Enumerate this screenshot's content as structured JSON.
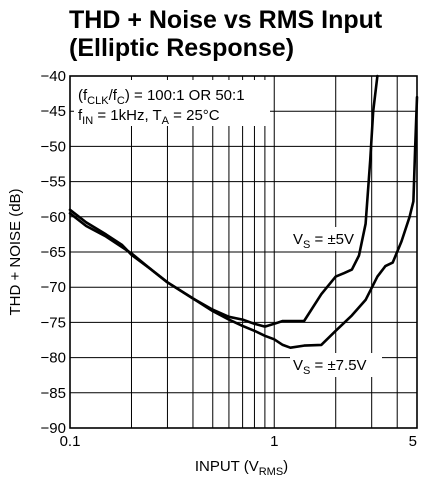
{
  "chart_data": {
    "type": "line",
    "title_lines": [
      "THD + Noise vs RMS Input",
      "(Elliptic Response)"
    ],
    "xlabel": {
      "main": "INPUT (V",
      "sub": "RMS",
      "tail": ")"
    },
    "ylabel": "THD + NOISE (dB)",
    "x_scale": "log",
    "xlim": [
      0.1,
      5
    ],
    "ylim": [
      -90,
      -40
    ],
    "x_ticks": [
      {
        "value": 0.1,
        "label": "0.1"
      },
      {
        "value": 1,
        "label": "1"
      },
      {
        "value": 5,
        "label": "5"
      }
    ],
    "x_grid": [
      0.2,
      0.3,
      0.4,
      0.5,
      0.6,
      0.7,
      0.8,
      0.9,
      2,
      3,
      4
    ],
    "y_ticks": [
      -40,
      -45,
      -50,
      -55,
      -60,
      -65,
      -70,
      -75,
      -80,
      -85,
      -90
    ],
    "grid": true,
    "annotation_box": {
      "line1": {
        "prefix": "(f",
        "sub1": "CLK",
        "mid": "/f",
        "sub2": "C",
        "suffix": ") = 100:1 OR 50:1"
      },
      "line2": {
        "prefix": "f",
        "sub1": "IN",
        "mid": " = 1kHz, T",
        "sub2": "A",
        "suffix": " = 25°C"
      }
    },
    "series": [
      {
        "label": {
          "prefix": "V",
          "sub": "S",
          "suffix": " = ±5V"
        },
        "points": [
          [
            0.1,
            -59
          ],
          [
            0.12,
            -60.8
          ],
          [
            0.15,
            -62.5
          ],
          [
            0.18,
            -64
          ],
          [
            0.2,
            -65.4
          ],
          [
            0.25,
            -67.5
          ],
          [
            0.3,
            -69.3
          ],
          [
            0.4,
            -71.6
          ],
          [
            0.5,
            -73.2
          ],
          [
            0.6,
            -74.2
          ],
          [
            0.7,
            -74.6
          ],
          [
            0.8,
            -75.2
          ],
          [
            0.9,
            -75.6
          ],
          [
            1.0,
            -75.2
          ],
          [
            1.1,
            -74.8
          ],
          [
            1.3,
            -74.8
          ],
          [
            1.4,
            -74.8
          ],
          [
            1.7,
            -71
          ],
          [
            2.0,
            -68.5
          ],
          [
            2.2,
            -68
          ],
          [
            2.4,
            -67.5
          ],
          [
            2.6,
            -65.5
          ],
          [
            2.8,
            -61
          ],
          [
            2.95,
            -52
          ],
          [
            3.05,
            -45
          ],
          [
            3.2,
            -40
          ]
        ]
      },
      {
        "label": {
          "prefix": "V",
          "sub": "S",
          "suffix": " = ±7.5V"
        },
        "points": [
          [
            0.1,
            -59.5
          ],
          [
            0.12,
            -61.3
          ],
          [
            0.15,
            -62.8
          ],
          [
            0.2,
            -65.2
          ],
          [
            0.25,
            -67.5
          ],
          [
            0.3,
            -69.3
          ],
          [
            0.4,
            -71.6
          ],
          [
            0.5,
            -73.4
          ],
          [
            0.6,
            -74.6
          ],
          [
            0.7,
            -75.5
          ],
          [
            0.8,
            -76.2
          ],
          [
            0.9,
            -76.9
          ],
          [
            1.0,
            -77.4
          ],
          [
            1.1,
            -78.2
          ],
          [
            1.2,
            -78.6
          ],
          [
            1.4,
            -78.3
          ],
          [
            1.7,
            -78.2
          ],
          [
            2.0,
            -76.2
          ],
          [
            2.4,
            -74
          ],
          [
            2.8,
            -71.8
          ],
          [
            3.2,
            -68.5
          ],
          [
            3.5,
            -67
          ],
          [
            3.8,
            -66.5
          ],
          [
            4.2,
            -63.5
          ],
          [
            4.6,
            -60
          ],
          [
            4.8,
            -57.8
          ],
          [
            4.9,
            -50
          ],
          [
            5.0,
            -43
          ]
        ]
      }
    ]
  }
}
